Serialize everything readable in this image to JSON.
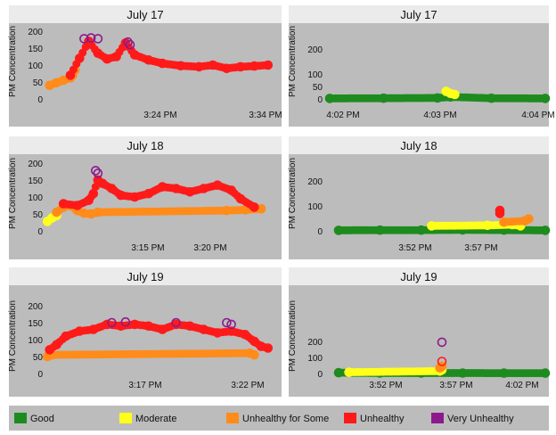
{
  "legend": {
    "items": [
      {
        "label": "Good",
        "color": "#1e8b1e"
      },
      {
        "label": "Moderate",
        "color": "#ffff1a"
      },
      {
        "label": "Unhealthy for Some",
        "color": "#ff8c1a"
      },
      {
        "label": "Unhealthy",
        "color": "#ff1a1a"
      },
      {
        "label": "Very Unhealthy",
        "color": "#8c1a8c"
      }
    ]
  },
  "colors": {
    "panel_bg": "#bcbcbc",
    "title_bg": "#ebebeb",
    "background": "#ffffff"
  },
  "chart_data": [
    {
      "type": "scatter",
      "title": "July 17",
      "ylabel": "PM Concentration",
      "ylim": [
        0,
        200
      ],
      "yticks": [
        0,
        50,
        100,
        150,
        200
      ],
      "xticks": [
        "3:24 PM",
        "3:34 PM"
      ],
      "series": [
        {
          "category": "Unhealthy for Some",
          "points": [
            [
              3,
              40
            ],
            [
              6,
              48
            ],
            [
              9,
              55
            ],
            [
              12,
              62
            ],
            [
              13,
              70
            ],
            [
              14,
              85
            ]
          ]
        },
        {
          "category": "Unhealthy",
          "points": [
            [
              12,
              70
            ],
            [
              16,
              120
            ],
            [
              20,
              170
            ],
            [
              24,
              135
            ],
            [
              28,
              118
            ],
            [
              32,
              125
            ],
            [
              36,
              165
            ],
            [
              40,
              130
            ],
            [
              46,
              115
            ],
            [
              52,
              105
            ],
            [
              60,
              98
            ],
            [
              68,
              95
            ],
            [
              74,
              100
            ],
            [
              80,
              90
            ],
            [
              86,
              95
            ],
            [
              92,
              97
            ],
            [
              98,
              100
            ]
          ]
        },
        {
          "category": "Very Unhealthy",
          "points": [
            [
              18,
              178
            ],
            [
              21,
              180
            ],
            [
              24,
              178
            ],
            [
              37,
              168
            ],
            [
              38,
              160
            ]
          ]
        }
      ]
    },
    {
      "type": "scatter",
      "title": "July 17",
      "ylabel": "PM Concentration",
      "ylim": [
        0,
        250
      ],
      "yticks": [
        0,
        50,
        100,
        200
      ],
      "xticks": [
        "4:02 PM",
        "4:03 PM",
        "4:04 PM"
      ],
      "series": [
        {
          "category": "Good",
          "points": [
            [
              0,
              2
            ],
            [
              25,
              3
            ],
            [
              50,
              4
            ],
            [
              56,
              8
            ],
            [
              75,
              3
            ],
            [
              100,
              2
            ]
          ]
        },
        {
          "category": "Moderate",
          "points": [
            [
              54,
              30
            ],
            [
              56,
              22
            ],
            [
              58,
              18
            ]
          ]
        }
      ]
    },
    {
      "type": "scatter",
      "title": "July 18",
      "ylabel": "PM Concentration",
      "ylim": [
        0,
        200
      ],
      "yticks": [
        0,
        50,
        100,
        150,
        200
      ],
      "xticks": [
        "3:15 PM",
        "3:20 PM"
      ],
      "series": [
        {
          "category": "Moderate",
          "points": [
            [
              2,
              28
            ],
            [
              4,
              38
            ],
            [
              6,
              45
            ]
          ]
        },
        {
          "category": "Unhealthy for Some",
          "points": [
            [
              6,
              55
            ],
            [
              9,
              70
            ],
            [
              12,
              75
            ],
            [
              15,
              60
            ],
            [
              18,
              52
            ],
            [
              21,
              50
            ],
            [
              24,
              55
            ],
            [
              80,
              60
            ],
            [
              88,
              62
            ],
            [
              95,
              65
            ]
          ]
        },
        {
          "category": "Unhealthy",
          "points": [
            [
              9,
              80
            ],
            [
              15,
              75
            ],
            [
              20,
              90
            ],
            [
              22,
              110
            ],
            [
              24,
              150
            ],
            [
              26,
              140
            ],
            [
              30,
              125
            ],
            [
              34,
              105
            ],
            [
              40,
              100
            ],
            [
              46,
              110
            ],
            [
              52,
              130
            ],
            [
              58,
              125
            ],
            [
              64,
              115
            ],
            [
              70,
              125
            ],
            [
              76,
              135
            ],
            [
              82,
              120
            ],
            [
              86,
              95
            ],
            [
              92,
              70
            ]
          ]
        },
        {
          "category": "Very Unhealthy",
          "points": [
            [
              23,
              178
            ],
            [
              24,
              170
            ]
          ]
        }
      ]
    },
    {
      "type": "scatter",
      "title": "July 18",
      "ylabel": "PM Concentration",
      "ylim": [
        0,
        250
      ],
      "yticks": [
        0,
        100,
        200
      ],
      "xticks": [
        "3:52 PM",
        "3:57 PM"
      ],
      "series": [
        {
          "category": "Good",
          "points": [
            [
              0,
              2
            ],
            [
              20,
              3
            ],
            [
              40,
              3
            ],
            [
              60,
              4
            ],
            [
              80,
              3
            ],
            [
              100,
              2
            ]
          ]
        },
        {
          "category": "Moderate",
          "points": [
            [
              45,
              20
            ],
            [
              72,
              22
            ],
            [
              84,
              25
            ],
            [
              88,
              20
            ]
          ]
        },
        {
          "category": "Unhealthy for Some",
          "points": [
            [
              80,
              35
            ],
            [
              90,
              40
            ],
            [
              92,
              48
            ]
          ]
        },
        {
          "category": "Unhealthy",
          "points": [
            [
              78,
              70
            ],
            [
              78,
              82
            ]
          ]
        }
      ]
    },
    {
      "type": "scatter",
      "title": "July 19",
      "ylabel": "PM Concentration",
      "ylim": [
        0,
        200
      ],
      "yticks": [
        0,
        50,
        100,
        150,
        200
      ],
      "xticks": [
        "3:17 PM",
        "3:22 PM"
      ],
      "series": [
        {
          "category": "Unhealthy for Some",
          "points": [
            [
              2,
              50
            ],
            [
              4,
              55
            ],
            [
              90,
              60
            ],
            [
              92,
              55
            ]
          ]
        },
        {
          "category": "Unhealthy",
          "points": [
            [
              3,
              70
            ],
            [
              6,
              85
            ],
            [
              10,
              110
            ],
            [
              16,
              125
            ],
            [
              22,
              130
            ],
            [
              28,
              145
            ],
            [
              34,
              140
            ],
            [
              40,
              145
            ],
            [
              46,
              140
            ],
            [
              52,
              130
            ],
            [
              58,
              145
            ],
            [
              64,
              140
            ],
            [
              70,
              130
            ],
            [
              76,
              120
            ],
            [
              82,
              125
            ],
            [
              88,
              115
            ],
            [
              92,
              95
            ],
            [
              95,
              80
            ],
            [
              98,
              75
            ]
          ]
        },
        {
          "category": "Very Unhealthy",
          "points": [
            [
              30,
              150
            ],
            [
              36,
              152
            ],
            [
              58,
              150
            ],
            [
              80,
              150
            ],
            [
              82,
              145
            ]
          ]
        }
      ]
    },
    {
      "type": "scatter",
      "title": "July 19",
      "ylabel": "PM Concentration",
      "ylim": [
        0,
        250
      ],
      "yticks": [
        0,
        100,
        200
      ],
      "xticks": [
        "3:52 PM",
        "3:57 PM",
        "4:02 PM"
      ],
      "series": [
        {
          "category": "Good",
          "points": [
            [
              0,
              5
            ],
            [
              20,
              3
            ],
            [
              40,
              3
            ],
            [
              60,
              3
            ],
            [
              80,
              2
            ],
            [
              100,
              2
            ]
          ]
        },
        {
          "category": "Moderate",
          "points": [
            [
              5,
              8
            ],
            [
              49,
              15
            ],
            [
              50,
              22
            ]
          ]
        },
        {
          "category": "Unhealthy for Some",
          "points": [
            [
              49,
              35
            ],
            [
              50,
              45
            ]
          ]
        },
        {
          "category": "Unhealthy",
          "points": [
            [
              50,
              75
            ]
          ]
        },
        {
          "category": "Very Unhealthy",
          "points": [
            [
              50,
              195
            ]
          ]
        }
      ]
    }
  ]
}
